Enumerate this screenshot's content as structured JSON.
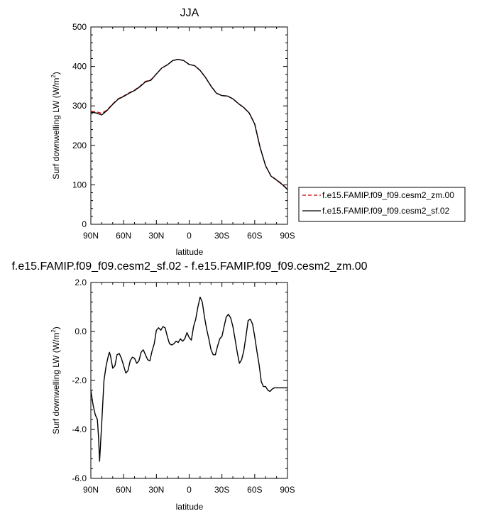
{
  "colors": {
    "axis": "#000000",
    "series_control": "#cc0000",
    "series_test": "#000000"
  },
  "chart_data": [
    {
      "type": "line",
      "title": "JJA",
      "xlabel": "latitude",
      "ylabel_main": "Surf downwelling LW (W/m",
      "ylabel_sup": "2",
      "ylabel_close": ")",
      "xlim": [
        90,
        -90
      ],
      "ylim": [
        0,
        500
      ],
      "xtick_values": [
        90,
        60,
        30,
        0,
        -30,
        -60,
        -90
      ],
      "xtick_labels": [
        "90N",
        "60N",
        "30N",
        "0",
        "30S",
        "60S",
        "90S"
      ],
      "ytick_values": [
        0,
        100,
        200,
        300,
        400,
        500
      ],
      "ytick_labels": [
        "0",
        "100",
        "200",
        "300",
        "400",
        "500"
      ],
      "legend_position": "right",
      "series": [
        {
          "name": "f.e15.FAMIP.f09_f09.cesm2_zm.00",
          "style": "dashed",
          "color": "#cc0000",
          "x": [
            90,
            85,
            80,
            75,
            70,
            65,
            60,
            55,
            50,
            45,
            40,
            35,
            30,
            25,
            20,
            15,
            10,
            5,
            0,
            -5,
            -10,
            -15,
            -20,
            -25,
            -30,
            -35,
            -40,
            -45,
            -50,
            -55,
            -60,
            -65,
            -70,
            -75,
            -80,
            -85,
            -90
          ],
          "y": [
            286,
            285,
            281,
            290,
            305,
            318,
            325,
            333,
            340,
            350,
            362,
            366,
            381,
            396,
            404,
            415,
            418,
            415,
            405,
            402,
            390,
            372,
            350,
            332,
            326,
            325,
            318,
            306,
            296,
            282,
            255,
            195,
            148,
            122,
            113,
            102,
            89
          ]
        },
        {
          "name": "f.e15.FAMIP.f09_f09.cesm2_sf.02",
          "style": "solid",
          "color": "#000000",
          "x": [
            90,
            85,
            80,
            75,
            70,
            65,
            60,
            55,
            50,
            45,
            40,
            35,
            30,
            25,
            20,
            15,
            10,
            5,
            0,
            -5,
            -10,
            -15,
            -20,
            -25,
            -30,
            -35,
            -40,
            -45,
            -50,
            -55,
            -60,
            -65,
            -70,
            -75,
            -80,
            -85,
            -90
          ],
          "y": [
            284,
            282,
            277,
            289,
            304,
            317,
            324,
            332,
            339,
            349,
            361,
            365,
            381,
            396,
            404,
            415,
            418,
            415,
            405,
            402,
            390,
            372,
            350,
            332,
            326,
            325,
            318,
            306,
            296,
            282,
            254,
            194,
            148,
            122,
            112,
            101,
            88
          ]
        }
      ]
    },
    {
      "type": "line",
      "title": "f.e15.FAMIP.f09_f09.cesm2_sf.02 - f.e15.FAMIP.f09_f09.cesm2_zm.00",
      "xlabel": "latitude",
      "ylabel_main": "Surf downwelling LW (W/m",
      "ylabel_sup": "2",
      "ylabel_close": ")",
      "xlim": [
        90,
        -90
      ],
      "ylim": [
        -6,
        2
      ],
      "xtick_values": [
        90,
        60,
        30,
        0,
        -30,
        -60,
        -90
      ],
      "xtick_labels": [
        "90N",
        "60N",
        "30N",
        "0",
        "30S",
        "60S",
        "90S"
      ],
      "ytick_values": [
        -6,
        -4,
        -2,
        0,
        2
      ],
      "ytick_labels": [
        "-6.0",
        "-4.0",
        "-2.0",
        "0.0",
        "2.0"
      ],
      "series": [
        {
          "color": "#000000",
          "x": [
            90,
            88,
            86,
            84,
            83,
            82,
            80,
            78,
            76,
            74,
            73,
            72,
            70,
            68,
            66,
            64,
            62,
            60,
            58,
            56,
            54,
            52,
            50,
            48,
            46,
            44,
            42,
            40,
            38,
            36,
            34,
            32,
            30,
            28,
            26,
            24,
            22,
            20,
            18,
            16,
            14,
            12,
            10,
            8,
            6,
            4,
            2,
            0,
            -2,
            -4,
            -6,
            -8,
            -10,
            -12,
            -14,
            -16,
            -18,
            -20,
            -22,
            -24,
            -26,
            -28,
            -30,
            -32,
            -34,
            -36,
            -38,
            -40,
            -42,
            -44,
            -46,
            -48,
            -50,
            -52,
            -54,
            -56,
            -58,
            -60,
            -62,
            -64,
            -66,
            -68,
            -70,
            -72,
            -74,
            -76,
            -78,
            -80,
            -82,
            -84,
            -86,
            -88,
            -90
          ],
          "y": [
            -2.4,
            -3.0,
            -3.4,
            -3.6,
            -4.3,
            -5.3,
            -3.7,
            -2.0,
            -1.4,
            -1.0,
            -0.85,
            -1.0,
            -1.5,
            -1.4,
            -0.95,
            -0.9,
            -1.1,
            -1.4,
            -1.7,
            -1.6,
            -1.2,
            -1.05,
            -1.1,
            -1.3,
            -1.2,
            -0.85,
            -0.75,
            -0.95,
            -1.15,
            -1.2,
            -0.8,
            -0.5,
            0.05,
            0.15,
            0.05,
            0.2,
            0.15,
            -0.2,
            -0.5,
            -0.55,
            -0.5,
            -0.4,
            -0.45,
            -0.3,
            -0.4,
            -0.3,
            -0.05,
            -0.25,
            -0.35,
            0.2,
            0.5,
            1.0,
            1.4,
            1.2,
            0.6,
            0.1,
            -0.3,
            -0.75,
            -0.95,
            -0.95,
            -0.6,
            -0.3,
            -0.2,
            0.2,
            0.6,
            0.7,
            0.55,
            0.2,
            -0.3,
            -0.85,
            -1.3,
            -1.15,
            -0.8,
            -0.2,
            0.45,
            0.5,
            0.3,
            -0.2,
            -0.8,
            -1.35,
            -2.05,
            -2.25,
            -2.25,
            -2.4,
            -2.45,
            -2.35,
            -2.3,
            -2.3,
            -2.3,
            -2.3,
            -2.3,
            -2.3,
            -2.3
          ]
        }
      ]
    }
  ]
}
